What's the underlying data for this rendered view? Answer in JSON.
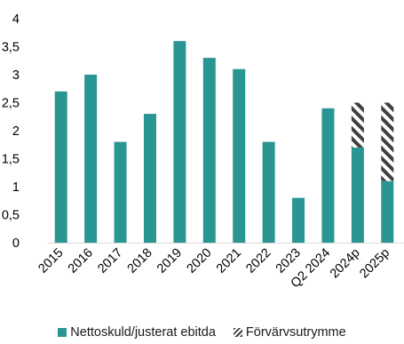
{
  "chart_data": {
    "type": "bar",
    "title": "",
    "xlabel": "",
    "ylabel": "",
    "ylim": [
      0,
      4
    ],
    "y_ticks": [
      "0",
      "0,5",
      "1",
      "1,5",
      "2",
      "2,5",
      "3",
      "3,5",
      "4"
    ],
    "y_tick_values": [
      0,
      0.5,
      1,
      1.5,
      2,
      2.5,
      3,
      3.5,
      4
    ],
    "grid": false,
    "stacked": true,
    "legend_position": "bottom",
    "categories": [
      "2015",
      "2016",
      "2017",
      "2018",
      "2019",
      "2020",
      "2021",
      "2022",
      "2023",
      "Q2 2024",
      "2024p",
      "2025p"
    ],
    "series": [
      {
        "name": "Nettoskuld/justerat ebitda",
        "color": "#2a9694",
        "values": [
          2.7,
          3.0,
          1.8,
          2.3,
          3.6,
          3.3,
          3.1,
          1.8,
          0.8,
          2.4,
          1.7,
          1.1
        ]
      },
      {
        "name": "Förvärvsutrymme",
        "color": "#404040",
        "pattern": "diagonal-hatch",
        "values": [
          0,
          0,
          0,
          0,
          0,
          0,
          0,
          0,
          0,
          0,
          0.8,
          1.4
        ]
      }
    ]
  }
}
